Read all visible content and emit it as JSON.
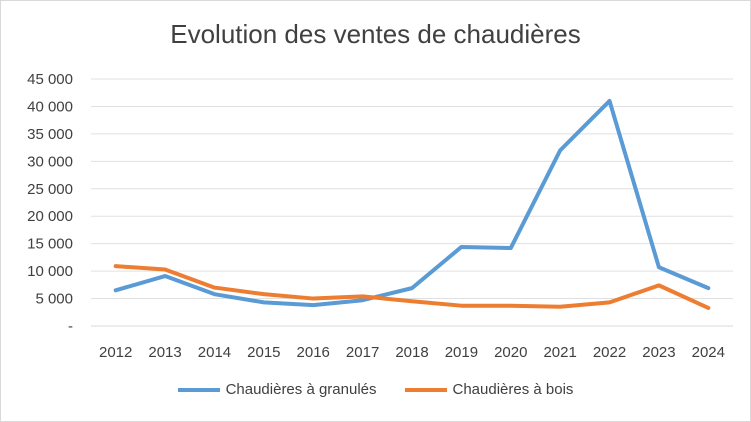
{
  "chart_data": {
    "type": "line",
    "title": "Evolution des ventes de chaudières",
    "xlabel": "",
    "ylabel": "",
    "categories": [
      "2012",
      "2013",
      "2014",
      "2015",
      "2016",
      "2017",
      "2018",
      "2019",
      "2020",
      "2021",
      "2022",
      "2023",
      "2024"
    ],
    "ylim": [
      0,
      45000
    ],
    "yticks": [
      0,
      5000,
      10000,
      15000,
      20000,
      25000,
      30000,
      35000,
      40000,
      45000
    ],
    "ytick_labels": [
      "-",
      "5 000",
      "10 000",
      "15 000",
      "20 000",
      "25 000",
      "30 000",
      "35 000",
      "40 000",
      "45 000"
    ],
    "grid": true,
    "legend_position": "bottom",
    "series": [
      {
        "name": "Chaudières à granulés",
        "color": "#5b9bd5",
        "values": [
          6500,
          9100,
          5800,
          4300,
          3800,
          4700,
          6900,
          14400,
          14200,
          32000,
          41000,
          10700,
          6900
        ]
      },
      {
        "name": "Chaudières à bois",
        "color": "#ed7d31",
        "values": [
          10900,
          10300,
          7000,
          5800,
          5000,
          5400,
          4500,
          3700,
          3700,
          3500,
          4300,
          7400,
          3300
        ]
      }
    ]
  }
}
